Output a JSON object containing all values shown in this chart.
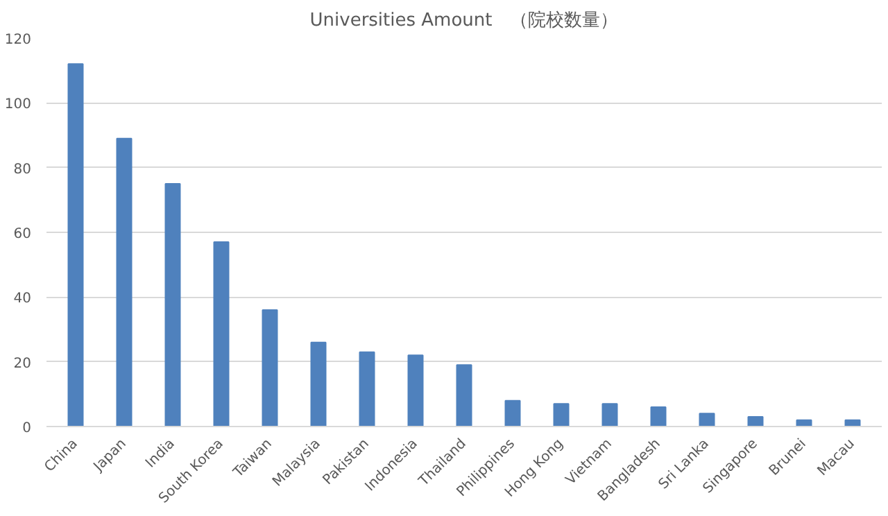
{
  "chart_data": {
    "type": "bar",
    "title": "Universities Amount　（院校数量）",
    "categories": [
      "China",
      "Japan",
      "India",
      "South Korea",
      "Taiwan",
      "Malaysia",
      "Pakistan",
      "Indonesia",
      "Thailand",
      "Philippines",
      "Hong Kong",
      "Vietnam",
      "Bangladesh",
      "Sri Lanka",
      "Singapore",
      "Brunei",
      "Macau"
    ],
    "values": [
      112,
      89,
      75,
      57,
      36,
      26,
      23,
      22,
      19,
      8,
      7,
      7,
      6,
      4,
      3,
      2,
      2
    ],
    "color": "#4f81bd",
    "ylim": [
      0,
      120
    ],
    "yticks": [
      0,
      20,
      40,
      60,
      80,
      100,
      120
    ],
    "grid": "y"
  }
}
